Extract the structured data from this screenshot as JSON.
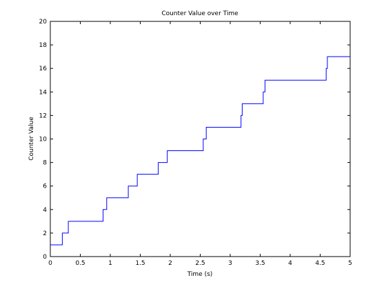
{
  "chart_data": {
    "type": "line",
    "step": true,
    "title": "Counter Value over Time",
    "xlabel": "Time (s)",
    "ylabel": "Counter Value",
    "xlim": [
      0,
      5
    ],
    "ylim": [
      0,
      20
    ],
    "xticks": [
      0,
      0.5,
      1,
      1.5,
      2,
      2.5,
      3,
      3.5,
      4,
      4.5,
      5
    ],
    "xtick_labels": [
      "0",
      "0.5",
      "1",
      "1.5",
      "2",
      "2.5",
      "3",
      "3.5",
      "4",
      "4.5",
      "5"
    ],
    "yticks": [
      0,
      2,
      4,
      6,
      8,
      10,
      12,
      14,
      16,
      18,
      20
    ],
    "ytick_labels": [
      "0",
      "2",
      "4",
      "6",
      "8",
      "10",
      "12",
      "14",
      "16",
      "18",
      "20"
    ],
    "grid": false,
    "line_color": "#0000ff",
    "series": [
      {
        "x": [
          0,
          0.2,
          0.3,
          0.88,
          0.94,
          1.3,
          1.45,
          1.8,
          1.95,
          2.55,
          2.6,
          3.18,
          3.2,
          3.55,
          3.58,
          4.6,
          4.62,
          5.0
        ],
        "y": [
          1,
          2,
          3,
          4,
          5,
          6,
          7,
          8,
          9,
          10,
          11,
          12,
          13,
          14,
          15,
          16,
          17,
          17
        ]
      }
    ]
  }
}
